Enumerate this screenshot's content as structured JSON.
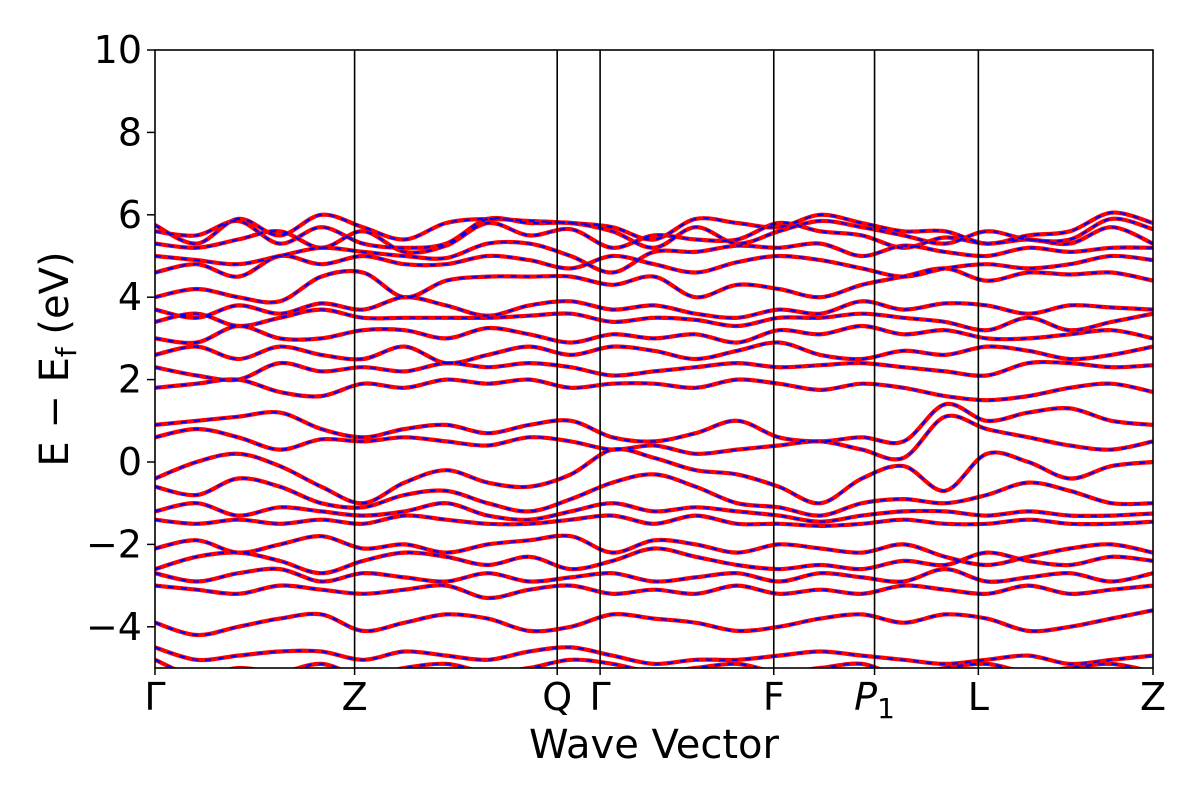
{
  "chart_data": {
    "type": "line",
    "title": "",
    "xlabel": "Wave Vector",
    "ylabel": {
      "main": "E − E",
      "sub": "f",
      "unit": " (eV)"
    },
    "ylim": [
      -5,
      10
    ],
    "yticks": [
      -4,
      -2,
      0,
      2,
      4,
      6,
      8,
      10
    ],
    "ytick_labels": [
      "−4",
      "−2",
      "0",
      "2",
      "4",
      "6",
      "8",
      "10"
    ],
    "x_range": [
      0,
      1
    ],
    "kpoints": [
      {
        "label": "Γ",
        "x": 0.0
      },
      {
        "label": "Z",
        "x": 0.2
      },
      {
        "label": "Q",
        "x": 0.403
      },
      {
        "label": "Γ",
        "x": 0.446
      },
      {
        "label": "F",
        "x": 0.62
      },
      {
        "label": "P",
        "sub": "1",
        "x": 0.721
      },
      {
        "label": "L",
        "x": 0.825
      },
      {
        "label": "Z",
        "x": 1.0
      }
    ],
    "series_style": [
      {
        "role": "solid",
        "color": "#ff0000"
      },
      {
        "role": "dashed-overlay",
        "color": "#0000ff"
      }
    ],
    "bands": [
      [
        5.75,
        5.3,
        5.9,
        5.5,
        6.0,
        5.7,
        5.4,
        5.8,
        5.9,
        5.85,
        5.8,
        5.7,
        5.4,
        5.9,
        5.8,
        5.7,
        6.0,
        5.8,
        5.6,
        5.6,
        5.3,
        5.5,
        5.6,
        6.05,
        5.8
      ],
      [
        5.6,
        5.5,
        5.85,
        5.3,
        5.7,
        5.3,
        5.2,
        5.3,
        5.9,
        5.8,
        5.8,
        5.6,
        5.2,
        5.7,
        5.3,
        5.6,
        5.85,
        5.7,
        5.5,
        5.3,
        5.6,
        5.4,
        5.4,
        5.9,
        5.65
      ],
      [
        5.3,
        5.2,
        5.4,
        5.6,
        5.2,
        5.6,
        5.1,
        5.25,
        5.8,
        5.5,
        5.65,
        5.2,
        5.5,
        5.4,
        5.4,
        5.8,
        5.6,
        5.5,
        5.2,
        5.45,
        5.3,
        5.4,
        5.3,
        5.7,
        5.3
      ],
      [
        5.0,
        4.9,
        4.8,
        5.0,
        5.2,
        5.1,
        5.0,
        4.95,
        5.3,
        5.3,
        5.0,
        4.6,
        5.1,
        5.1,
        5.25,
        5.2,
        5.3,
        5.0,
        5.25,
        5.1,
        5.0,
        5.2,
        5.1,
        5.2,
        5.2
      ],
      [
        4.6,
        4.8,
        4.5,
        5.0,
        4.8,
        5.0,
        4.8,
        4.8,
        5.0,
        4.9,
        4.7,
        5.0,
        4.8,
        4.6,
        4.85,
        5.0,
        4.9,
        4.7,
        4.5,
        4.7,
        4.8,
        4.7,
        4.8,
        5.0,
        4.9
      ],
      [
        4.0,
        4.2,
        4.0,
        3.9,
        4.5,
        4.6,
        4.0,
        4.4,
        4.5,
        4.5,
        4.5,
        4.3,
        4.5,
        4.0,
        4.3,
        4.2,
        4.0,
        4.3,
        4.5,
        4.7,
        4.4,
        4.6,
        4.55,
        4.6,
        4.4
      ],
      [
        3.7,
        3.5,
        3.8,
        3.6,
        3.85,
        3.7,
        4.0,
        3.8,
        3.55,
        3.8,
        3.9,
        3.7,
        3.8,
        3.6,
        3.5,
        3.7,
        3.6,
        3.9,
        3.7,
        3.85,
        3.8,
        3.6,
        3.8,
        3.75,
        3.7
      ],
      [
        3.4,
        3.6,
        3.3,
        3.5,
        3.7,
        3.5,
        3.5,
        3.5,
        3.5,
        3.55,
        3.6,
        3.4,
        3.5,
        3.45,
        3.3,
        3.5,
        3.5,
        3.6,
        3.5,
        3.4,
        3.2,
        3.5,
        3.2,
        3.4,
        3.6
      ],
      [
        3.0,
        2.9,
        3.3,
        3.0,
        3.0,
        3.2,
        3.2,
        3.0,
        3.25,
        3.1,
        2.9,
        3.1,
        3.0,
        3.1,
        2.9,
        3.2,
        3.1,
        3.3,
        3.1,
        3.2,
        3.0,
        3.0,
        3.1,
        3.2,
        3.0
      ],
      [
        2.6,
        2.8,
        2.5,
        2.8,
        2.6,
        2.5,
        2.8,
        2.4,
        2.6,
        2.8,
        2.6,
        2.8,
        2.7,
        2.5,
        2.7,
        2.9,
        2.6,
        2.5,
        2.7,
        2.6,
        2.8,
        2.7,
        2.5,
        2.6,
        2.8
      ],
      [
        2.3,
        2.1,
        2.0,
        2.4,
        2.2,
        2.3,
        2.2,
        2.4,
        2.3,
        2.4,
        2.3,
        2.1,
        2.2,
        2.3,
        2.4,
        2.3,
        2.35,
        2.4,
        2.3,
        2.2,
        2.1,
        2.4,
        2.4,
        2.3,
        2.35
      ],
      [
        1.8,
        1.9,
        2.0,
        1.7,
        1.6,
        1.9,
        1.8,
        2.0,
        1.9,
        2.0,
        1.8,
        1.9,
        1.9,
        1.8,
        2.0,
        1.9,
        1.75,
        1.9,
        1.8,
        1.6,
        1.5,
        1.6,
        1.8,
        1.9,
        1.7
      ],
      [
        0.9,
        1.0,
        1.1,
        1.2,
        0.8,
        0.6,
        0.8,
        0.9,
        0.7,
        0.9,
        1.0,
        0.6,
        0.5,
        0.7,
        1.0,
        0.6,
        0.5,
        0.6,
        0.5,
        1.4,
        1.0,
        1.2,
        1.3,
        1.0,
        0.9
      ],
      [
        0.6,
        0.8,
        0.6,
        0.3,
        0.55,
        0.5,
        0.6,
        0.5,
        0.4,
        0.6,
        0.5,
        0.3,
        0.4,
        0.2,
        0.3,
        0.4,
        0.5,
        0.3,
        0.1,
        1.1,
        0.8,
        0.6,
        0.4,
        0.3,
        0.5
      ],
      [
        -0.4,
        0.0,
        0.2,
        -0.1,
        -0.6,
        -1.0,
        -0.5,
        -0.2,
        -0.5,
        -0.6,
        -0.3,
        0.3,
        0.1,
        -0.2,
        -0.3,
        -0.6,
        -1.0,
        -0.4,
        -0.1,
        -0.7,
        0.2,
        0.0,
        -0.4,
        -0.1,
        0.0
      ],
      [
        -0.6,
        -0.8,
        -0.4,
        -0.6,
        -1.0,
        -1.1,
        -0.8,
        -0.7,
        -1.0,
        -1.2,
        -0.9,
        -0.5,
        -0.3,
        -0.6,
        -1.0,
        -1.1,
        -1.3,
        -1.0,
        -0.9,
        -1.0,
        -0.8,
        -0.5,
        -0.7,
        -1.0,
        -1.0
      ],
      [
        -1.2,
        -1.0,
        -1.3,
        -1.1,
        -1.2,
        -1.3,
        -1.2,
        -1.0,
        -1.3,
        -1.4,
        -1.2,
        -1.0,
        -1.2,
        -1.1,
        -1.2,
        -1.3,
        -1.45,
        -1.3,
        -1.2,
        -1.2,
        -1.3,
        -1.2,
        -1.3,
        -1.3,
        -1.25
      ],
      [
        -1.4,
        -1.5,
        -1.4,
        -1.5,
        -1.4,
        -1.5,
        -1.3,
        -1.4,
        -1.5,
        -1.5,
        -1.4,
        -1.3,
        -1.5,
        -1.3,
        -1.5,
        -1.5,
        -1.55,
        -1.5,
        -1.4,
        -1.5,
        -1.5,
        -1.4,
        -1.5,
        -1.5,
        -1.45
      ],
      [
        -2.1,
        -1.9,
        -2.2,
        -2.0,
        -1.8,
        -2.1,
        -2.0,
        -2.2,
        -2.0,
        -1.9,
        -1.8,
        -2.2,
        -1.9,
        -2.0,
        -2.2,
        -2.0,
        -2.1,
        -2.2,
        -2.0,
        -2.3,
        -2.5,
        -2.3,
        -2.1,
        -2.0,
        -2.2
      ],
      [
        -2.6,
        -2.3,
        -2.2,
        -2.4,
        -2.7,
        -2.4,
        -2.2,
        -2.3,
        -2.5,
        -2.3,
        -2.6,
        -2.4,
        -2.1,
        -2.3,
        -2.5,
        -2.6,
        -2.5,
        -2.6,
        -2.4,
        -2.5,
        -2.2,
        -2.4,
        -2.5,
        -2.3,
        -2.4
      ],
      [
        -2.7,
        -2.9,
        -2.7,
        -2.6,
        -2.9,
        -2.7,
        -2.8,
        -2.9,
        -2.7,
        -2.9,
        -2.8,
        -2.7,
        -2.9,
        -2.8,
        -2.7,
        -2.9,
        -2.7,
        -2.8,
        -2.9,
        -2.6,
        -2.9,
        -2.8,
        -2.7,
        -2.9,
        -2.7
      ],
      [
        -3.0,
        -3.1,
        -3.2,
        -3.0,
        -3.1,
        -3.2,
        -3.1,
        -3.0,
        -3.3,
        -3.1,
        -3.0,
        -3.2,
        -3.1,
        -3.2,
        -3.0,
        -3.2,
        -3.1,
        -3.2,
        -3.0,
        -3.1,
        -3.2,
        -3.0,
        -3.2,
        -3.1,
        -3.0
      ],
      [
        -3.9,
        -4.2,
        -4.0,
        -3.8,
        -3.7,
        -4.1,
        -3.9,
        -3.7,
        -3.8,
        -4.1,
        -4.0,
        -3.7,
        -3.8,
        -3.9,
        -4.1,
        -4.0,
        -3.8,
        -3.7,
        -3.9,
        -3.7,
        -3.8,
        -4.1,
        -4.0,
        -3.8,
        -3.6
      ],
      [
        -4.5,
        -4.8,
        -4.7,
        -4.6,
        -4.6,
        -4.8,
        -4.6,
        -4.7,
        -4.8,
        -4.6,
        -4.5,
        -4.7,
        -4.9,
        -4.8,
        -4.8,
        -4.7,
        -4.6,
        -4.7,
        -4.8,
        -4.9,
        -4.8,
        -4.7,
        -4.9,
        -4.8,
        -4.7
      ],
      [
        -4.8,
        -5.2,
        -5.0,
        -5.1,
        -4.9,
        -5.2,
        -5.0,
        -4.9,
        -5.1,
        -5.0,
        -4.8,
        -4.9,
        -5.1,
        -5.0,
        -4.9,
        -5.1,
        -5.0,
        -4.9,
        -5.2,
        -5.0,
        -4.9,
        -5.1,
        -5.0,
        -4.9,
        -5.1
      ]
    ]
  }
}
